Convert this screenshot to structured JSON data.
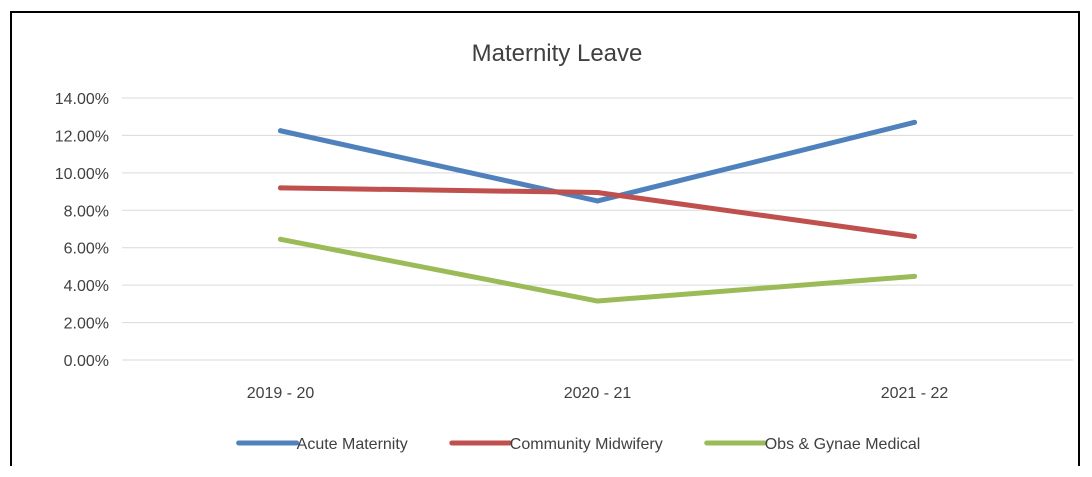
{
  "chart_data": {
    "type": "line",
    "title": "Maternity Leave",
    "xlabel": "",
    "ylabel": "",
    "categories": [
      "2019 - 20",
      "2020 - 21",
      "2021 - 22"
    ],
    "series": [
      {
        "name": "Acute Maternity",
        "color": "#4f81bd",
        "values": [
          0.1225,
          0.085,
          0.127
        ]
      },
      {
        "name": "Community Midwifery",
        "color": "#c0504d",
        "values": [
          0.092,
          0.0895,
          0.066
        ]
      },
      {
        "name": "Obs & Gynae Medical",
        "color": "#9bbb59",
        "values": [
          0.0645,
          0.0315,
          0.0447
        ]
      }
    ],
    "ylim": [
      0,
      0.14
    ],
    "yticks": [
      0,
      0.02,
      0.04,
      0.06,
      0.08,
      0.1,
      0.12,
      0.14
    ],
    "ytick_labels": [
      "0.00%",
      "2.00%",
      "4.00%",
      "6.00%",
      "8.00%",
      "10.00%",
      "12.00%",
      "14.00%"
    ],
    "grid": true,
    "legend_position": "bottom",
    "colors": {
      "gridline": "#d9d9d9",
      "text": "#404040",
      "frame": "#000000"
    }
  }
}
